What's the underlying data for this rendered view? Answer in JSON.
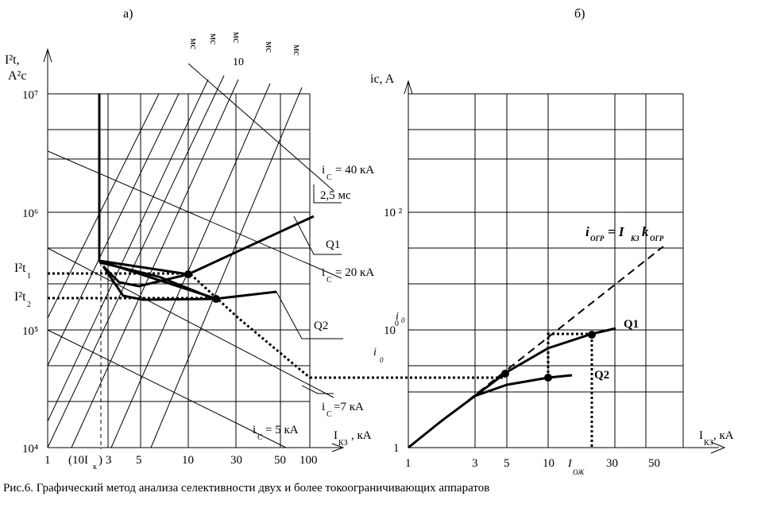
{
  "panel_a": {
    "label": "а)",
    "y_label_1": "I²t,",
    "y_label_2": "A²c",
    "y_ticks": [
      "10⁷",
      "10⁶",
      "10⁵",
      "10⁴"
    ],
    "x_ticks": [
      "1",
      "(10I",
      "к",
      ")",
      "3",
      "5",
      "10",
      "30",
      "50",
      "100"
    ],
    "x_label": "I",
    "x_label_sub": "КЗ",
    "x_label_unit": ", кА",
    "i2t1": "I²t",
    "i2t1_sub": "1",
    "i2t2": "I²t",
    "i2t2_sub": "2",
    "ic40": "i",
    "ic40_sub": "C",
    "ic40_val": "= 40 кА",
    "time_label": "2,5 мс",
    "ic20_val": "= 20 кА",
    "ic7_val": "=7 кА",
    "ic5_val": "= 5 кА",
    "q1": "Q1",
    "q2": "Q2",
    "top_labels": [
      "мс",
      "мс",
      "мс",
      "мс",
      "мс"
    ],
    "top_numbers": [
      "10"
    ]
  },
  "panel_b": {
    "label": "б)",
    "y_label": "ic, A",
    "y_ticks": [
      "10 ²",
      "10",
      "1"
    ],
    "y_tick_sup": "0",
    "i0": "i",
    "i0_sub": "0",
    "x_ticks": [
      "1",
      "3",
      "5",
      "10",
      "30",
      "50"
    ],
    "x_label": "I",
    "x_label_sub": "КЗ",
    "x_label_unit": ", кА",
    "i_ozh": "I",
    "i_ozh_sub": "ОЖ",
    "formula_left": "i",
    "formula_left_sub": "ОГР",
    "formula_mid": "= I",
    "formula_mid_sub": "КЗ",
    "formula_k": "k",
    "formula_k_sub": "ОГР",
    "q1": "Q1",
    "q2": "Q2"
  },
  "caption": "Рис.6. Графический метод анализа селективности двух и более токоограничивающих аппаратов"
}
